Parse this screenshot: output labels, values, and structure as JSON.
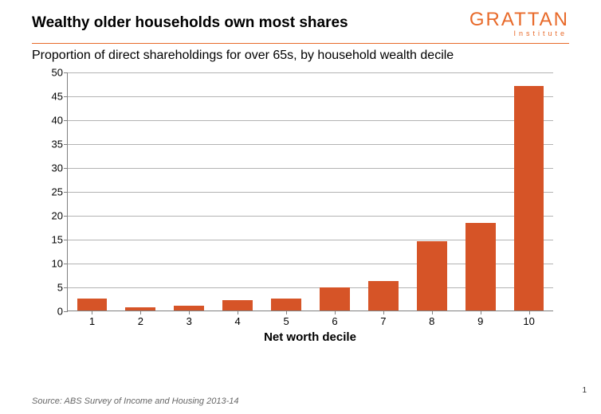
{
  "header": {
    "title": "Wealthy older households own most shares",
    "subtitle": "Proportion of direct shareholdings for over 65s, by household wealth decile",
    "logo_main": "GRATTAN",
    "logo_sub": "Institute",
    "logo_color": "#e86a2a"
  },
  "chart": {
    "type": "bar",
    "categories": [
      "1",
      "2",
      "3",
      "4",
      "5",
      "6",
      "7",
      "8",
      "9",
      "10"
    ],
    "values": [
      2.4,
      0.6,
      0.9,
      2.2,
      2.5,
      4.8,
      6.2,
      14.5,
      18.3,
      47.0
    ],
    "bar_color": "#d65427",
    "xlabel": "Net worth decile",
    "xlabel_fontsize": 15,
    "xlabel_fontweight": "bold",
    "ylim": [
      0,
      50
    ],
    "ytick_step": 5,
    "yticks": [
      0,
      5,
      10,
      15,
      20,
      25,
      30,
      35,
      40,
      45,
      50
    ],
    "tick_fontsize": 13,
    "grid_color": "#808080",
    "background_color": "#ffffff",
    "bar_width": 0.62
  },
  "footer": {
    "source": "Source: ABS Survey of Income and Housing 2013-14",
    "page": "1"
  }
}
